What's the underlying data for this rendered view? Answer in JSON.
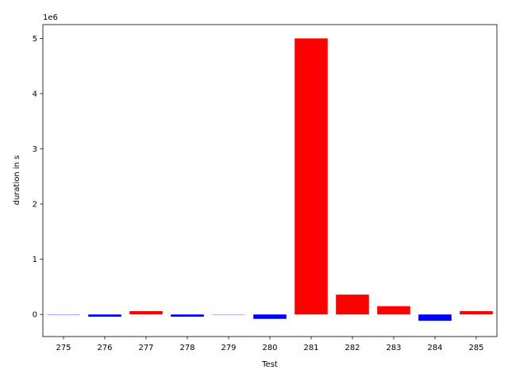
{
  "chart_data": {
    "type": "bar",
    "xlabel": "Test",
    "ylabel": "duration in s",
    "offset_label": "1e6",
    "categories": [
      "275",
      "276",
      "277",
      "278",
      "279",
      "280",
      "281",
      "282",
      "283",
      "284",
      "285"
    ],
    "values": [
      -5000,
      -40000,
      60000,
      -40000,
      0,
      -80000,
      5000000,
      360000,
      150000,
      -115000,
      60000
    ],
    "colors": [
      "#0000ff",
      "#0000ff",
      "#ff0000",
      "#0000ff",
      "#0000ff",
      "#0000ff",
      "#ff0000",
      "#ff0000",
      "#ff0000",
      "#0000ff",
      "#ff0000"
    ],
    "ylim": [
      -400000,
      5250000
    ],
    "yticks": [
      0,
      1000000,
      2000000,
      3000000,
      4000000,
      5000000
    ],
    "ytick_labels": [
      "0",
      "1",
      "2",
      "3",
      "4",
      "5"
    ],
    "grid": false,
    "legend": false
  }
}
